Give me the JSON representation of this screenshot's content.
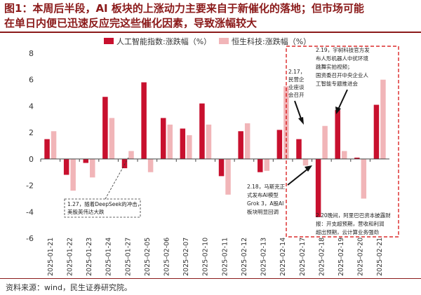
{
  "header": {
    "title_line1": "图1：本周后半段，AI 板块的上涨动力主要来自于新催化的落地；但市场可能",
    "title_line2": "在单日内便已迅速反应完这些催化因素，导致涨幅较大"
  },
  "source": "资料来源：wind，民生证券研究院。",
  "colors": {
    "series1": "#c8102e",
    "series2": "#f1b5b8",
    "accent": "#8b1a1a",
    "annotation_box": "#d40000"
  },
  "chart_data": {
    "type": "bar",
    "categories": [
      "2025-01-21",
      "2025-01-22",
      "2025-01-23",
      "2025-01-24",
      "2025-01-27",
      "2025-02-05",
      "2025-02-06",
      "2025-02-07",
      "2025-02-10",
      "2025-02-11",
      "2025-02-12",
      "2025-02-13",
      "2025-02-14",
      "2025-02-17",
      "2025-02-18",
      "2025-02-19",
      "2025-02-20",
      "2025-02-21"
    ],
    "series": [
      {
        "name": "人工智能指数:涨跌幅（%）",
        "values": [
          1.5,
          -1.2,
          -0.3,
          4.7,
          -0.7,
          5.8,
          3.1,
          2.3,
          4.2,
          -1.3,
          2.1,
          -1.0,
          2.2,
          1.5,
          -4.4,
          3.7,
          0.1,
          4.1
        ]
      },
      {
        "name": "恒生科技:涨跌幅（%）",
        "values": [
          2.1,
          -2.4,
          -1.4,
          3.1,
          0.6,
          -1.0,
          2.6,
          1.8,
          2.6,
          -2.7,
          2.7,
          -0.9,
          5.5,
          -0.5,
          2.5,
          0.6,
          -3.0,
          6.0
        ]
      }
    ],
    "ylim": [
      -6,
      8
    ],
    "yticks": [
      -6,
      -4,
      -2,
      0,
      2,
      4,
      6,
      8
    ],
    "grid": false,
    "legend": "top",
    "annotations": [
      "1.27，随着DeepSeek的冲击，美股英伟达大跌",
      "2.17，民营企业座谈会召开",
      "2.18，马斯克正式发布AI模型Grok 3，A股AI板块明显回调",
      "2.19，宇树科技官方发布人形机器人中扰环境跳舞实拍视频；国资委召开中央企业人工智能专题推进会",
      "2.20晚间，阿里巴巴资本披露财报：开支超预期，营收和利润超出预期，云计算业务强劲"
    ]
  }
}
